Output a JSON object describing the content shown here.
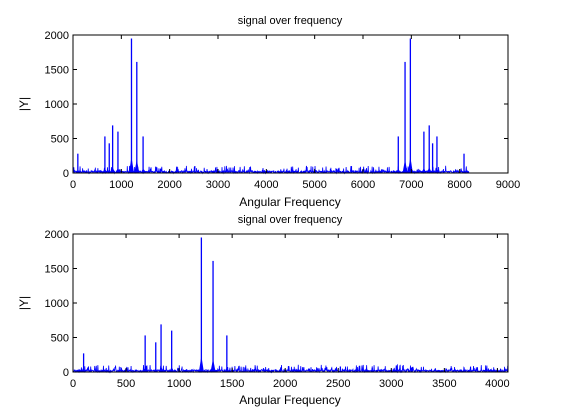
{
  "chart_data": [
    {
      "type": "line",
      "title": "signal over frequency",
      "xlabel": "Angular Frequency",
      "ylabel": "|Y|",
      "xlim": [
        0,
        9000
      ],
      "ylim": [
        0,
        2000
      ],
      "xticks": [
        0,
        1000,
        2000,
        3000,
        4000,
        5000,
        6000,
        7000,
        8000,
        9000
      ],
      "yticks": [
        0,
        500,
        1000,
        1500,
        2000
      ],
      "grid": false,
      "series_color": "#0000ff",
      "peaks": [
        {
          "x": 100,
          "y": 280
        },
        {
          "x": 660,
          "y": 530
        },
        {
          "x": 750,
          "y": 430
        },
        {
          "x": 820,
          "y": 690
        },
        {
          "x": 930,
          "y": 600
        },
        {
          "x": 1210,
          "y": 1950
        },
        {
          "x": 1320,
          "y": 1610
        },
        {
          "x": 1450,
          "y": 530
        },
        {
          "x": 2520,
          "y": 100
        },
        {
          "x": 3190,
          "y": 60
        },
        {
          "x": 5760,
          "y": 100
        },
        {
          "x": 6730,
          "y": 530
        },
        {
          "x": 6870,
          "y": 1610
        },
        {
          "x": 6980,
          "y": 1950
        },
        {
          "x": 7260,
          "y": 600
        },
        {
          "x": 7370,
          "y": 690
        },
        {
          "x": 7440,
          "y": 430
        },
        {
          "x": 7530,
          "y": 530
        },
        {
          "x": 8090,
          "y": 280
        }
      ],
      "noise_x_range": [
        0,
        8190
      ]
    },
    {
      "type": "line",
      "title": "signal over frequency",
      "xlabel": "Angular Frequency",
      "ylabel": "|Y|",
      "xlim": [
        0,
        4100
      ],
      "ylim": [
        0,
        2000
      ],
      "xticks": [
        0,
        500,
        1000,
        1500,
        2000,
        2500,
        3000,
        3500,
        4000
      ],
      "yticks": [
        0,
        500,
        1000,
        1500,
        2000
      ],
      "grid": false,
      "series_color": "#0000ff",
      "peaks": [
        {
          "x": 100,
          "y": 270
        },
        {
          "x": 680,
          "y": 530
        },
        {
          "x": 780,
          "y": 430
        },
        {
          "x": 830,
          "y": 690
        },
        {
          "x": 930,
          "y": 600
        },
        {
          "x": 1210,
          "y": 1950
        },
        {
          "x": 1320,
          "y": 1610
        },
        {
          "x": 1450,
          "y": 530
        },
        {
          "x": 2520,
          "y": 80
        },
        {
          "x": 2820,
          "y": 60
        },
        {
          "x": 3190,
          "y": 60
        }
      ],
      "noise_x_range": [
        0,
        4100
      ]
    }
  ]
}
